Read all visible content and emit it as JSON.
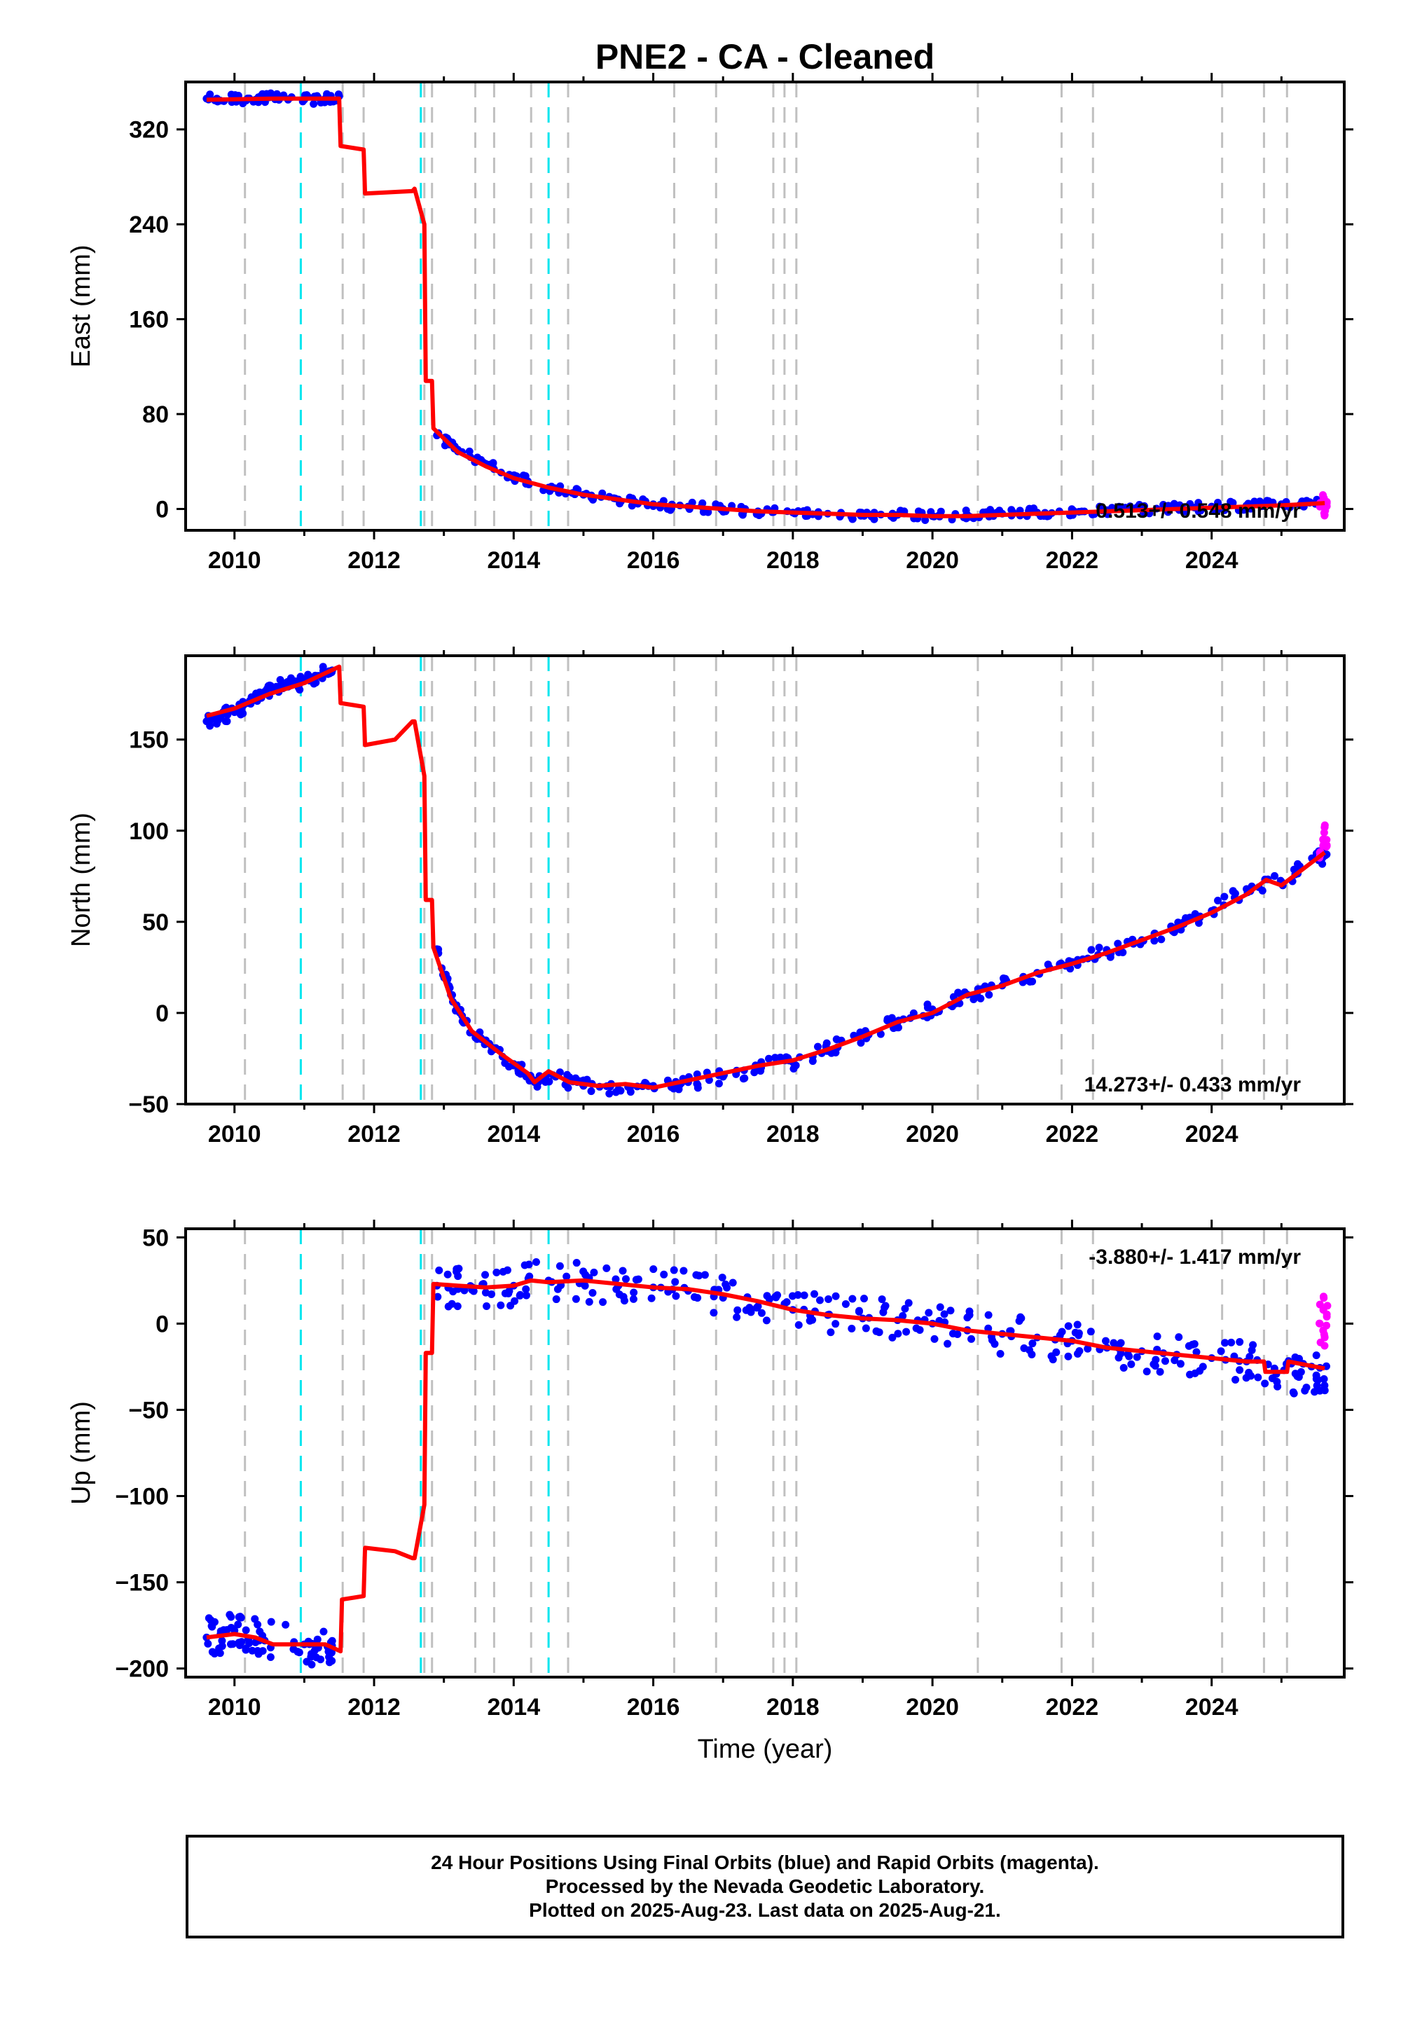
{
  "title": "PNE2  - CA - Cleaned",
  "colors": {
    "final_orbits": "#0000ff",
    "rapid_orbits": "#ff00ff",
    "model": "#ff0000",
    "antenna_change": "#00e5ee",
    "event_line": "#c0c0c0"
  },
  "shared_x": {
    "label": "Time (year)",
    "range": [
      2009.3,
      2025.9
    ],
    "ticks": [
      2010,
      2012,
      2014,
      2016,
      2018,
      2020,
      2022,
      2024
    ],
    "tick_labels": [
      "2010",
      "2012",
      "2014",
      "2016",
      "2018",
      "2020",
      "2022",
      "2024"
    ]
  },
  "event_lines": {
    "gray_dashed_years": [
      2010.15,
      2011.55,
      2011.85,
      2012.72,
      2012.83,
      2013.45,
      2013.72,
      2014.25,
      2014.78,
      2016.3,
      2016.9,
      2017.72,
      2017.88,
      2018.05,
      2020.65,
      2021.85,
      2022.3,
      2024.15,
      2024.75,
      2025.08
    ],
    "cyan_dashed_years": [
      2010.95,
      2012.67,
      2014.5
    ]
  },
  "chart_data": [
    {
      "type": "scatter",
      "panel": "east",
      "ylabel": "East (mm)",
      "ylim": [
        -18,
        360
      ],
      "yticks": [
        0,
        80,
        160,
        240,
        320
      ],
      "ytick_labels": [
        "0",
        "80",
        "160",
        "240",
        "320"
      ],
      "rate_label": "0.513+/- 0.548 mm/yr",
      "rate_position": "bottom-right",
      "series": [
        {
          "name": "Final Orbits",
          "color": "#0000ff",
          "x": [
            2009.6,
            2010.0,
            2010.3,
            2010.5,
            2011.0,
            2011.3,
            2011.5,
            2012.9,
            2013.2,
            2013.6,
            2014.0,
            2014.5,
            2015.0,
            2015.5,
            2016.0,
            2016.5,
            2017.0,
            2017.5,
            2018.0,
            2018.5,
            2019.0,
            2019.5,
            2020.0,
            2020.5,
            2021.0,
            2021.5,
            2022.0,
            2022.5,
            2023.0,
            2023.5,
            2024.0,
            2024.5,
            2025.0,
            2025.5
          ],
          "y": [
            346,
            346,
            345,
            347,
            345,
            346,
            348,
            62,
            50,
            38,
            27,
            18,
            12,
            8,
            4,
            2,
            0,
            -2,
            -3,
            -4,
            -5,
            -5,
            -6,
            -5,
            -4,
            -3,
            -2,
            -1,
            0,
            1,
            2,
            3,
            4,
            6
          ]
        },
        {
          "name": "Rapid Orbits",
          "color": "#ff00ff",
          "x": [
            2025.55,
            2025.6,
            2025.62,
            2025.65
          ],
          "y": [
            4,
            10,
            -5,
            6
          ]
        }
      ],
      "model": {
        "color": "#ff0000",
        "x": [
          2009.6,
          2010.6,
          2011.5,
          2011.52,
          2011.85,
          2011.87,
          2012.55,
          2012.58,
          2012.72,
          2012.74,
          2012.83,
          2012.85,
          2013.2,
          2013.6,
          2014.0,
          2014.5,
          2015.0,
          2015.5,
          2016.0,
          2016.5,
          2017.0,
          2017.5,
          2018.0,
          2018.5,
          2019.0,
          2019.5,
          2020.0,
          2020.5,
          2021.0,
          2021.5,
          2022.0,
          2022.5,
          2023.0,
          2023.5,
          2024.0,
          2024.5,
          2025.0,
          2025.62
        ],
        "y": [
          345,
          346,
          346,
          306,
          303,
          266,
          268,
          270,
          240,
          108,
          108,
          68,
          48,
          36,
          26,
          18,
          12,
          8,
          4,
          2,
          0,
          -2,
          -3,
          -4,
          -5,
          -5,
          -6,
          -6,
          -5,
          -4,
          -3,
          -2,
          -1,
          0,
          1,
          2,
          3,
          5
        ]
      }
    },
    {
      "type": "scatter",
      "panel": "north",
      "ylabel": "North (mm)",
      "ylim": [
        -50,
        196
      ],
      "yticks": [
        -50,
        0,
        50,
        100,
        150
      ],
      "ytick_labels": [
        "−50",
        "0",
        "50",
        "100",
        "150"
      ],
      "rate_label": "14.273+/- 0.433 mm/yr",
      "rate_position": "bottom-right",
      "series": [
        {
          "name": "Final Orbits",
          "color": "#0000ff",
          "x": [
            2009.6,
            2009.8,
            2010.0,
            2010.2,
            2010.4,
            2010.6,
            2010.8,
            2011.0,
            2011.2,
            2011.4,
            2012.9,
            2013.1,
            2013.3,
            2013.6,
            2014.0,
            2014.3,
            2014.6,
            2015.0,
            2015.5,
            2016.0,
            2016.5,
            2017.0,
            2017.5,
            2018.0,
            2018.5,
            2019.0,
            2019.5,
            2020.0,
            2020.5,
            2021.0,
            2021.5,
            2022.0,
            2022.5,
            2023.0,
            2023.5,
            2024.0,
            2024.5,
            2025.0,
            2025.5
          ],
          "y": [
            160,
            163,
            165,
            170,
            175,
            179,
            180,
            182,
            185,
            188,
            35,
            10,
            -5,
            -15,
            -28,
            -38,
            -35,
            -40,
            -42,
            -40,
            -38,
            -35,
            -30,
            -27,
            -20,
            -12,
            -5,
            2,
            10,
            15,
            22,
            28,
            33,
            40,
            47,
            56,
            68,
            72,
            85
          ]
        },
        {
          "name": "Rapid Orbits",
          "color": "#ff00ff",
          "x": [
            2025.55,
            2025.6,
            2025.62,
            2025.65
          ],
          "y": [
            88,
            95,
            102,
            92
          ]
        }
      ],
      "model": {
        "color": "#ff0000",
        "x": [
          2009.6,
          2010.0,
          2010.5,
          2011.0,
          2011.5,
          2011.52,
          2011.85,
          2011.87,
          2012.3,
          2012.55,
          2012.58,
          2012.72,
          2012.74,
          2012.83,
          2012.85,
          2013.1,
          2013.4,
          2013.8,
          2014.2,
          2014.3,
          2014.5,
          2014.8,
          2015.2,
          2015.6,
          2016.0,
          2016.5,
          2017.0,
          2017.5,
          2018.0,
          2018.5,
          2019.0,
          2019.5,
          2020.0,
          2020.5,
          2021.0,
          2021.5,
          2022.0,
          2022.5,
          2023.0,
          2023.5,
          2024.0,
          2024.5,
          2024.78,
          2025.0,
          2025.62
        ],
        "y": [
          163,
          167,
          175,
          181,
          190,
          170,
          168,
          147,
          150,
          160,
          160,
          130,
          62,
          62,
          36,
          8,
          -10,
          -22,
          -33,
          -38,
          -32,
          -38,
          -40,
          -39,
          -41,
          -37,
          -33,
          -29,
          -26,
          -20,
          -13,
          -5,
          0,
          10,
          15,
          22,
          27,
          33,
          40,
          47,
          55,
          65,
          73,
          70,
          88
        ]
      }
    },
    {
      "type": "scatter",
      "panel": "up",
      "ylabel": "Up (mm)",
      "ylim": [
        -205,
        55
      ],
      "yticks": [
        -200,
        -150,
        -100,
        -50,
        0,
        50
      ],
      "ytick_labels": [
        "−200",
        "−150",
        "−100",
        "−50",
        "0",
        "50"
      ],
      "xlabel": "Time (year)",
      "rate_label": "-3.880+/- 1.417 mm/yr",
      "rate_position": "top-right",
      "series": [
        {
          "name": "Final Orbits",
          "color": "#0000ff",
          "x": [
            2009.6,
            2009.8,
            2010.0,
            2010.2,
            2010.4,
            2011.0,
            2011.2,
            2011.4,
            2012.9,
            2013.2,
            2013.6,
            2014.0,
            2014.5,
            2015.0,
            2015.5,
            2016.0,
            2016.5,
            2017.0,
            2017.5,
            2018.0,
            2018.5,
            2019.0,
            2019.5,
            2020.0,
            2020.5,
            2021.0,
            2021.5,
            2022.0,
            2022.5,
            2023.0,
            2023.5,
            2024.0,
            2024.5,
            2024.9,
            2025.2,
            2025.5
          ],
          "y": [
            -182,
            -180,
            -178,
            -183,
            -181,
            -186,
            -188,
            -184,
            22,
            20,
            18,
            22,
            25,
            24,
            22,
            21,
            19,
            15,
            10,
            8,
            5,
            3,
            2,
            0,
            -4,
            -6,
            -8,
            -10,
            -14,
            -16,
            -18,
            -20,
            -22,
            -26,
            -29,
            -30
          ]
        },
        {
          "name": "Rapid Orbits",
          "color": "#ff00ff",
          "x": [
            2025.55,
            2025.6,
            2025.62,
            2025.65
          ],
          "y": [
            0,
            8,
            -8,
            4
          ]
        }
      ],
      "model": {
        "color": "#ff0000",
        "x": [
          2009.6,
          2010.0,
          2010.3,
          2010.55,
          2011.0,
          2011.3,
          2011.52,
          2011.54,
          2011.85,
          2011.87,
          2012.3,
          2012.55,
          2012.58,
          2012.72,
          2012.74,
          2012.83,
          2012.85,
          2013.2,
          2013.6,
          2014.0,
          2014.25,
          2014.5,
          2015.0,
          2015.5,
          2016.0,
          2016.5,
          2017.0,
          2017.5,
          2018.0,
          2018.5,
          2019.0,
          2019.5,
          2020.0,
          2020.5,
          2021.0,
          2021.5,
          2022.0,
          2022.5,
          2023.0,
          2023.5,
          2024.0,
          2024.5,
          2024.75,
          2024.77,
          2025.08,
          2025.1,
          2025.62
        ],
        "y": [
          -182,
          -180,
          -182,
          -186,
          -186,
          -186,
          -190,
          -160,
          -158,
          -130,
          -132,
          -136,
          -136,
          -105,
          -17,
          -17,
          23,
          22,
          21,
          22,
          25,
          24,
          25,
          23,
          21,
          20,
          17,
          13,
          8,
          5,
          3,
          2,
          0,
          -4,
          -6,
          -8,
          -10,
          -14,
          -16,
          -18,
          -20,
          -22,
          -22,
          -28,
          -28,
          -22,
          -26
        ]
      }
    }
  ],
  "footer": {
    "line1": "24 Hour Positions Using Final Orbits (blue) and Rapid Orbits (magenta).",
    "line2": "Processed by the Nevada Geodetic Laboratory.",
    "line3": "Plotted on 2025-Aug-23. Last data on 2025-Aug-21."
  }
}
